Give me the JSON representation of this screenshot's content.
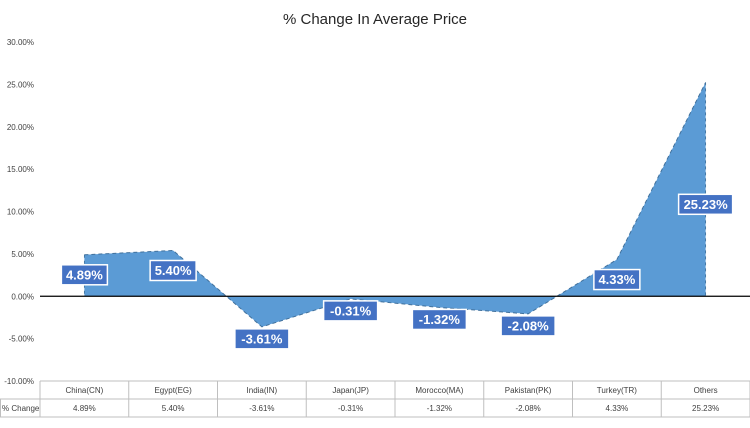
{
  "chart_data": {
    "type": "area",
    "title": "% Change In Average Price",
    "categories": [
      "China(CN)",
      "Egypt(EG)",
      "India(IN)",
      "Japan(JP)",
      "Morocco(MA)",
      "Pakistan(PK)",
      "Turkey(TR)",
      "Others"
    ],
    "series": [
      {
        "name": "% Change",
        "values": [
          4.89,
          5.4,
          -3.61,
          -0.31,
          -1.32,
          -2.08,
          4.33,
          25.23
        ],
        "labels": [
          "4.89%",
          "5.40%",
          "-3.61%",
          "-0.31%",
          "-1.32%",
          "-2.08%",
          "4.33%",
          "25.23%"
        ]
      }
    ],
    "ylim": [
      -10,
      30
    ],
    "yticks": [
      30,
      25,
      20,
      15,
      10,
      5,
      0,
      -5,
      -10
    ],
    "ytick_labels": [
      "30.00%",
      "25.00%",
      "20.00%",
      "15.00%",
      "10.00%",
      "5.00%",
      "0.00%",
      "-5.00%",
      "-10.00%"
    ],
    "table_row_label": "% Change",
    "grid": false,
    "colors": {
      "fill": "#5b9bd5",
      "stroke": "#41719c",
      "label_bg": "#4472c4",
      "axis": "#000000",
      "table_border": "#bfbfbf"
    }
  }
}
